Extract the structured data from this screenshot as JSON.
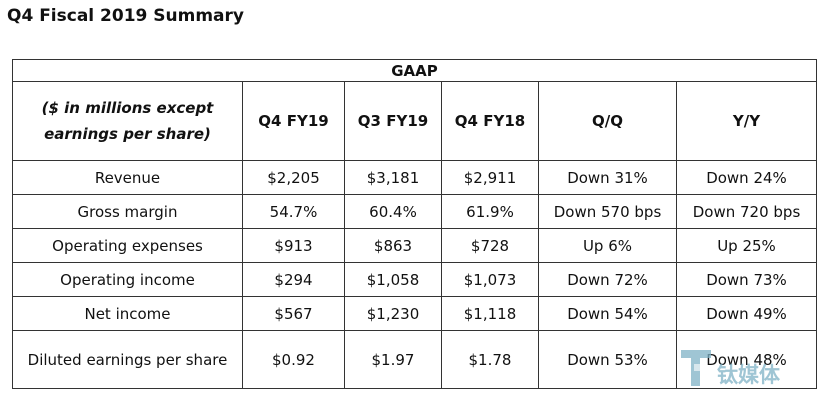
{
  "title": "Q4 Fiscal 2019 Summary",
  "table": {
    "group_header": "GAAP",
    "units_label": "($ in millions except earnings per share)",
    "columns": [
      "Q4 FY19",
      "Q3 FY19",
      "Q4 FY18",
      "Q/Q",
      "Y/Y"
    ],
    "rows": [
      {
        "label": "Revenue",
        "cells": [
          "$2,205",
          "$3,181",
          "$2,911",
          "Down 31%",
          "Down 24%"
        ]
      },
      {
        "label": "Gross margin",
        "cells": [
          "54.7%",
          "60.4%",
          "61.9%",
          "Down 570 bps",
          "Down 720 bps"
        ]
      },
      {
        "label": "Operating expenses",
        "cells": [
          "$913",
          "$863",
          "$728",
          "Up 6%",
          "Up 25%"
        ]
      },
      {
        "label": "Operating income",
        "cells": [
          "$294",
          "$1,058",
          "$1,073",
          "Down 72%",
          "Down 73%"
        ]
      },
      {
        "label": "Net income",
        "cells": [
          "$567",
          "$1,230",
          "$1,118",
          "Down 54%",
          "Down 49%"
        ]
      },
      {
        "label": "Diluted earnings per share",
        "cells": [
          "$0.92",
          "$1.97",
          "$1.78",
          "Down 53%",
          "Down 48%"
        ]
      }
    ]
  },
  "watermark": {
    "text": "钛媒体",
    "color": "#7fb2c6"
  }
}
